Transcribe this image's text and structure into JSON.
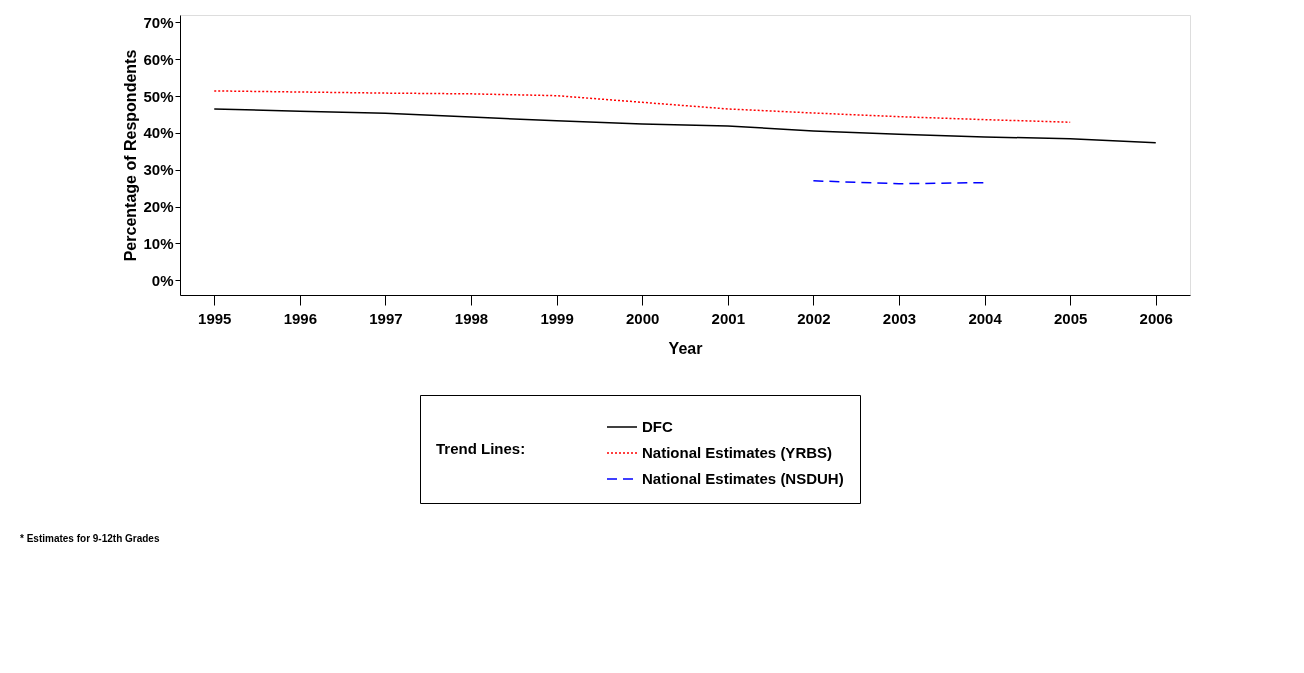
{
  "chart_data": {
    "type": "line",
    "xlabel": "Year",
    "ylabel": "Percentage of Respondents",
    "legend_title": "Trend Lines:",
    "categories": [
      "1995",
      "1996",
      "1997",
      "1998",
      "1999",
      "2000",
      "2001",
      "2002",
      "2003",
      "2004",
      "2005",
      "2006"
    ],
    "series": [
      {
        "name": "DFC",
        "color": "#000000",
        "line_style": "solid",
        "values": [
          46.5,
          45.9,
          45.3,
          44.3,
          43.3,
          42.4,
          41.9,
          40.5,
          39.6,
          38.9,
          38.4,
          37.3
        ]
      },
      {
        "name": "National Estimates (YRBS)",
        "color": "#ff0000",
        "line_style": "dotted",
        "values": [
          51.4,
          51.1,
          50.8,
          50.6,
          50.1,
          48.3,
          46.5,
          45.4,
          44.4,
          43.6,
          42.9,
          null
        ]
      },
      {
        "name": "National Estimates (NSDUH)",
        "color": "#0000ff",
        "line_style": "dashed",
        "values": [
          null,
          null,
          null,
          null,
          null,
          null,
          null,
          27.0,
          26.2,
          26.5,
          null,
          null
        ]
      }
    ],
    "ylim": [
      -4,
      72
    ],
    "yticks": [
      {
        "value": 0,
        "label": "0%"
      },
      {
        "value": 10,
        "label": "10%"
      },
      {
        "value": 20,
        "label": "20%"
      },
      {
        "value": 30,
        "label": "30%"
      },
      {
        "value": 40,
        "label": "40%"
      },
      {
        "value": 50,
        "label": "50%"
      },
      {
        "value": 60,
        "label": "60%"
      },
      {
        "value": 70,
        "label": "70%"
      }
    ],
    "grid": false,
    "legend": "bottom",
    "marker": "none",
    "annotations": [
      "* Estimates for 9-12th Grades"
    ]
  }
}
